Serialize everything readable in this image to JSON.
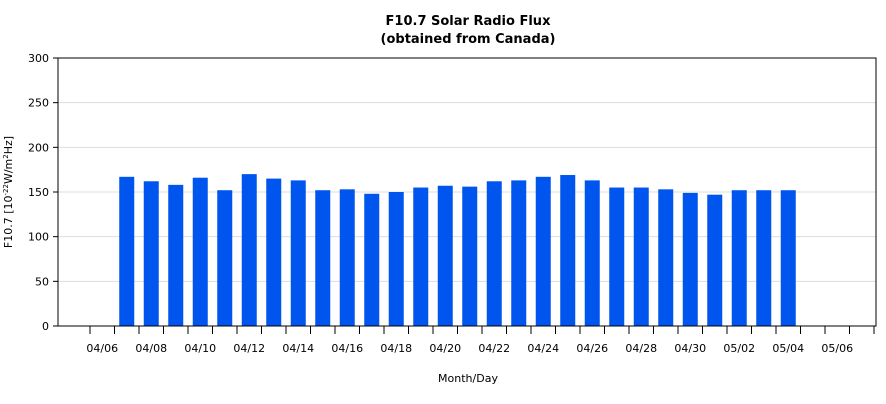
{
  "chart_data": {
    "type": "bar",
    "title": "F10.7 Solar Radio Flux",
    "subtitle": "(obtained from Canada)",
    "xlabel": "Month/Day",
    "ylabel_main": "F10.7 [10",
    "ylabel_exp1": "-22",
    "ylabel_mid": "W/m",
    "ylabel_exp2": "2",
    "ylabel_end": "Hz]",
    "ylim": [
      0,
      300
    ],
    "yticks": [
      "0",
      "50",
      "100",
      "150",
      "200",
      "250",
      "300"
    ],
    "grid": true,
    "bar_color": "#0055ee",
    "gridline_color": "#dddddd",
    "x_tick_labels": [
      "04/06",
      "04/08",
      "04/10",
      "04/12",
      "04/14",
      "04/16",
      "04/18",
      "04/20",
      "04/22",
      "04/24",
      "04/26",
      "04/28",
      "04/30",
      "05/02",
      "05/04",
      "05/06"
    ],
    "categories": [
      "04/06",
      "04/07",
      "04/08",
      "04/09",
      "04/10",
      "04/11",
      "04/12",
      "04/13",
      "04/14",
      "04/15",
      "04/16",
      "04/17",
      "04/18",
      "04/19",
      "04/20",
      "04/21",
      "04/22",
      "04/23",
      "04/24",
      "04/25",
      "04/26",
      "04/27",
      "04/28",
      "04/29",
      "04/30",
      "05/01",
      "05/02",
      "05/03",
      "05/04",
      "05/05",
      "05/06",
      "05/07"
    ],
    "values": [
      null,
      167,
      162,
      158,
      166,
      152,
      170,
      165,
      163,
      152,
      153,
      148,
      150,
      155,
      157,
      156,
      162,
      163,
      167,
      169,
      163,
      155,
      155,
      153,
      149,
      147,
      152,
      152,
      152,
      null,
      null,
      null
    ]
  }
}
